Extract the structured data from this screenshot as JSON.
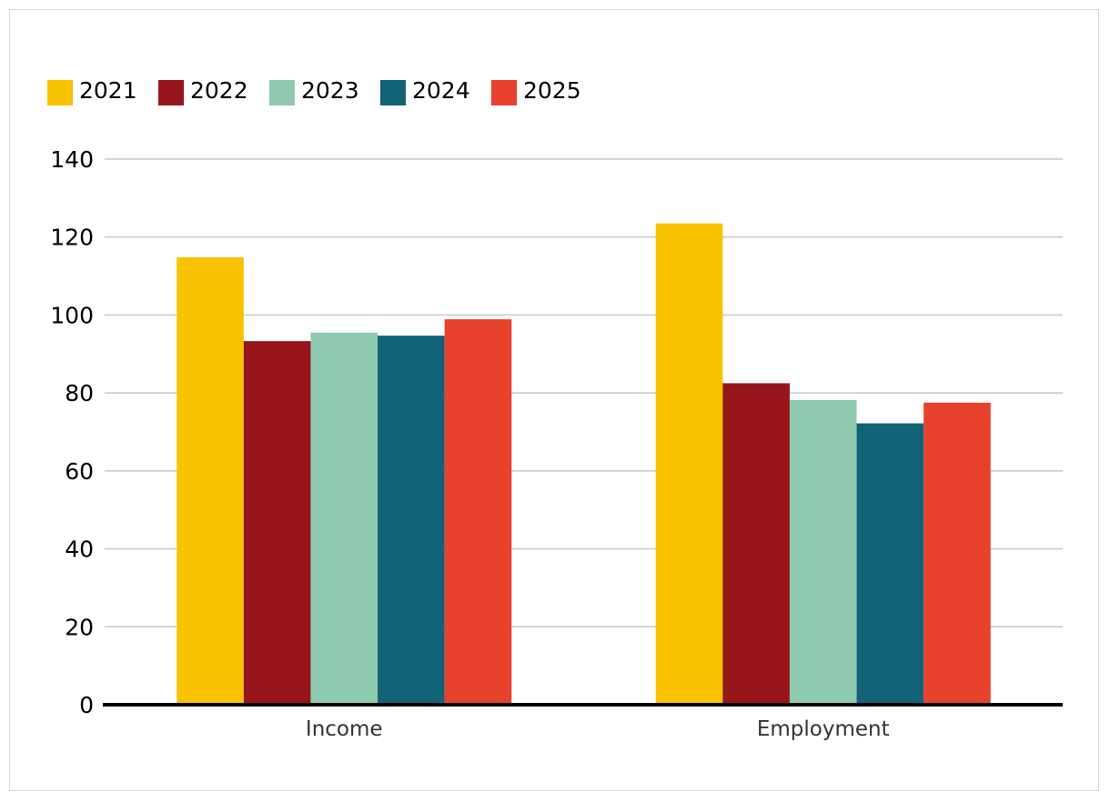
{
  "chart_data": {
    "type": "bar",
    "categories": [
      "Income",
      "Employment"
    ],
    "series": [
      {
        "name": "2021",
        "color": "#F8C200",
        "values": [
          114.8,
          123.5
        ]
      },
      {
        "name": "2022",
        "color": "#98161B",
        "values": [
          93.3,
          82.5
        ]
      },
      {
        "name": "2023",
        "color": "#8DCAAF",
        "values": [
          95.5,
          78.2
        ]
      },
      {
        "name": "2024",
        "color": "#126278",
        "values": [
          94.7,
          72.2
        ]
      },
      {
        "name": "2025",
        "color": "#E8412C",
        "values": [
          98.9,
          77.5
        ]
      }
    ],
    "title": "",
    "xlabel": "",
    "ylabel": "",
    "ylim": [
      0,
      140
    ],
    "yticks": [
      0,
      20,
      40,
      60,
      80,
      100,
      120,
      140
    ],
    "grid": true,
    "legend_position": "top-left"
  }
}
